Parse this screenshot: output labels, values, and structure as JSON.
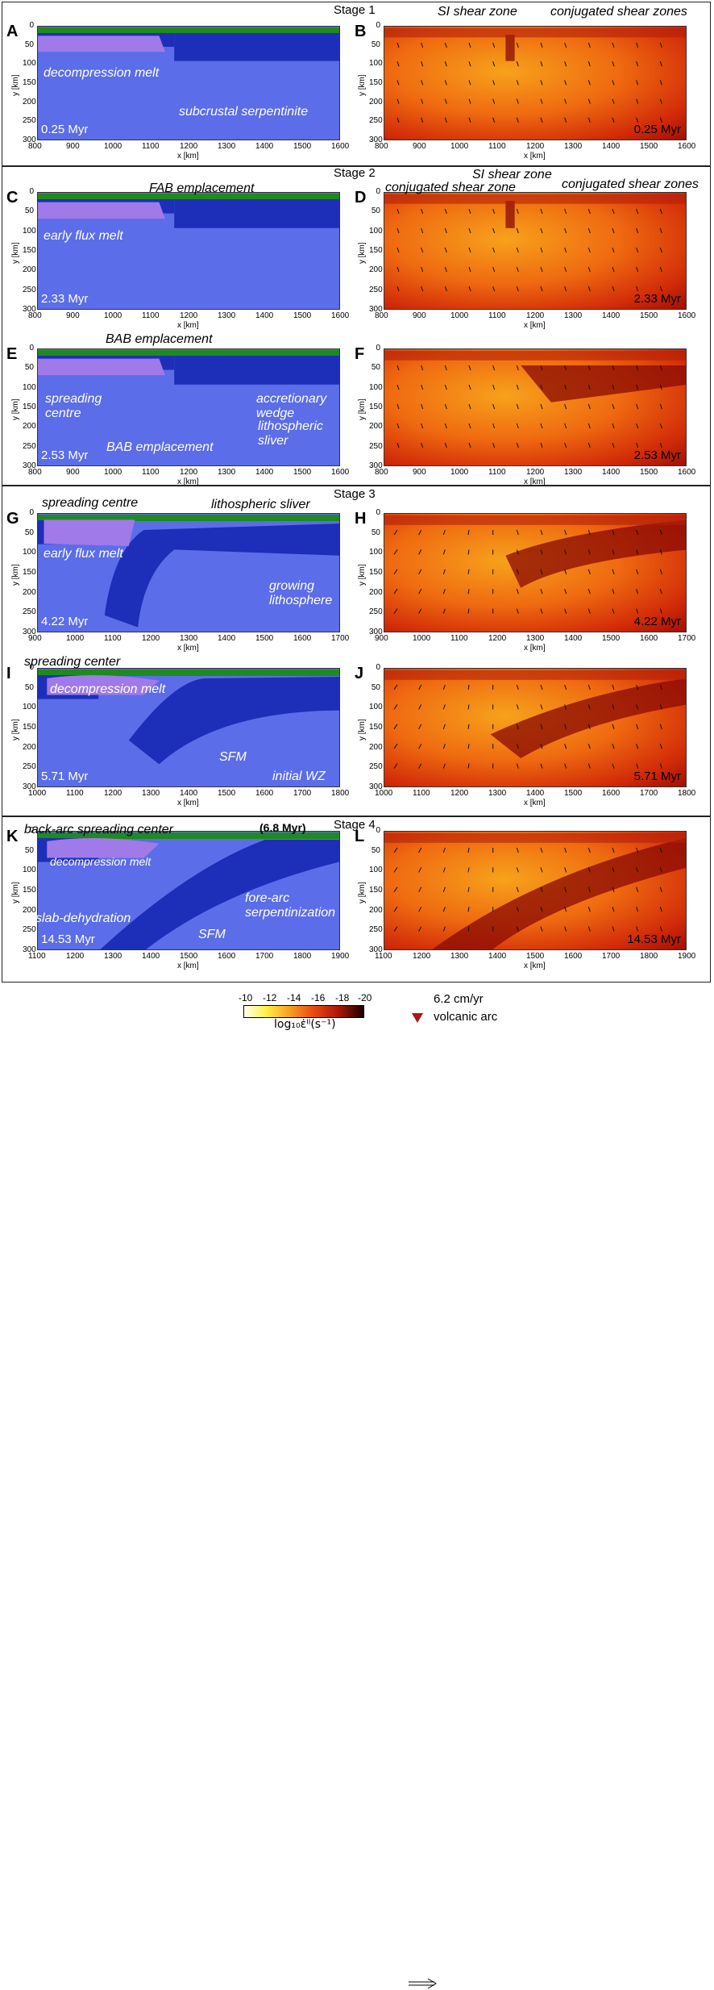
{
  "stages": [
    "Stage 1",
    "Stage 2",
    "Stage 3",
    "Stage 4"
  ],
  "panels": [
    {
      "id": "A",
      "letter": "A",
      "time": "0.25 Myr",
      "xticks": [
        "800",
        "900",
        "1000",
        "1100",
        "1200",
        "1300",
        "1400",
        "1500",
        "1600"
      ],
      "annotations": [
        "decompression melt",
        "subcrustal serpentinite"
      ]
    },
    {
      "id": "B",
      "letter": "B",
      "time": "0.25 Myr",
      "xticks": [
        "800",
        "900",
        "1000",
        "1100",
        "1200",
        "1300",
        "1400",
        "1500",
        "1600"
      ],
      "annotations": [
        "SI shear zone",
        "conjugated shear zones"
      ]
    },
    {
      "id": "C",
      "letter": "C",
      "time": "2.33 Myr",
      "xticks": [
        "800",
        "900",
        "1000",
        "1100",
        "1200",
        "1300",
        "1400",
        "1500",
        "1600"
      ],
      "annotations": [
        "FAB emplacement",
        "early flux melt"
      ]
    },
    {
      "id": "D",
      "letter": "D",
      "time": "2.33 Myr",
      "xticks": [
        "800",
        "900",
        "1000",
        "1100",
        "1200",
        "1300",
        "1400",
        "1500",
        "1600"
      ],
      "annotations": [
        "conjugated shear zone",
        "SI shear zone",
        "conjugated shear zones"
      ]
    },
    {
      "id": "E",
      "letter": "E",
      "time": "2.53 Myr",
      "xticks": [
        "800",
        "900",
        "1000",
        "1100",
        "1200",
        "1300",
        "1400",
        "1500",
        "1600"
      ],
      "annotations": [
        "BAB emplacement",
        "spreading centre",
        "accretionary wedge",
        "lithospheric sliver",
        "BAB emplacement"
      ]
    },
    {
      "id": "F",
      "letter": "F",
      "time": "2.53 Myr",
      "xticks": [
        "800",
        "900",
        "1000",
        "1100",
        "1200",
        "1300",
        "1400",
        "1500",
        "1600"
      ],
      "annotations": []
    },
    {
      "id": "G",
      "letter": "G",
      "time": "4.22 Myr",
      "xticks": [
        "900",
        "1000",
        "1100",
        "1200",
        "1300",
        "1400",
        "1500",
        "1600",
        "1700"
      ],
      "annotations": [
        "spreading centre",
        "lithospheric sliver",
        "early flux melt",
        "growing lithosphere"
      ]
    },
    {
      "id": "H",
      "letter": "H",
      "time": "4.22 Myr",
      "xticks": [
        "900",
        "1000",
        "1100",
        "1200",
        "1300",
        "1400",
        "1500",
        "1600",
        "1700"
      ],
      "annotations": []
    },
    {
      "id": "I",
      "letter": "I",
      "time": "5.71 Myr",
      "xticks": [
        "1000",
        "1100",
        "1200",
        "1300",
        "1400",
        "1500",
        "1600",
        "1700",
        "1800"
      ],
      "annotations": [
        "spreading center",
        "decompression melt",
        "SFM",
        "initial WZ"
      ]
    },
    {
      "id": "J",
      "letter": "J",
      "time": "5.71 Myr",
      "xticks": [
        "1000",
        "1100",
        "1200",
        "1300",
        "1400",
        "1500",
        "1600",
        "1700",
        "1800"
      ],
      "annotations": []
    },
    {
      "id": "K",
      "letter": "K",
      "time": "14.53 Myr",
      "xticks": [
        "1100",
        "1200",
        "1300",
        "1400",
        "1500",
        "1600",
        "1700",
        "1800",
        "1900"
      ],
      "annotations": [
        "back-arc spreading center",
        "(6.8 Myr)",
        "decompression melt",
        "slab-dehydration",
        "fore-arc serpentinization",
        "SFM"
      ]
    },
    {
      "id": "L",
      "letter": "L",
      "time": "14.53 Myr",
      "xticks": [
        "1100",
        "1200",
        "1300",
        "1400",
        "1500",
        "1600",
        "1700",
        "1800",
        "1900"
      ],
      "annotations": []
    }
  ],
  "yticks": [
    "0",
    "50",
    "100",
    "150",
    "200",
    "250",
    "300"
  ],
  "xlabel": "x [km]",
  "ylabel": "y [km]",
  "legend": {
    "colorbar_ticks": [
      "-10",
      "-12",
      "-14",
      "-16",
      "-18",
      "-20"
    ],
    "colorbar_label": "log₁₀ε̇ᴵᴵ(s⁻¹)",
    "arrow_label": "6.2 cm/yr",
    "arc_label": "volcanic arc"
  }
}
